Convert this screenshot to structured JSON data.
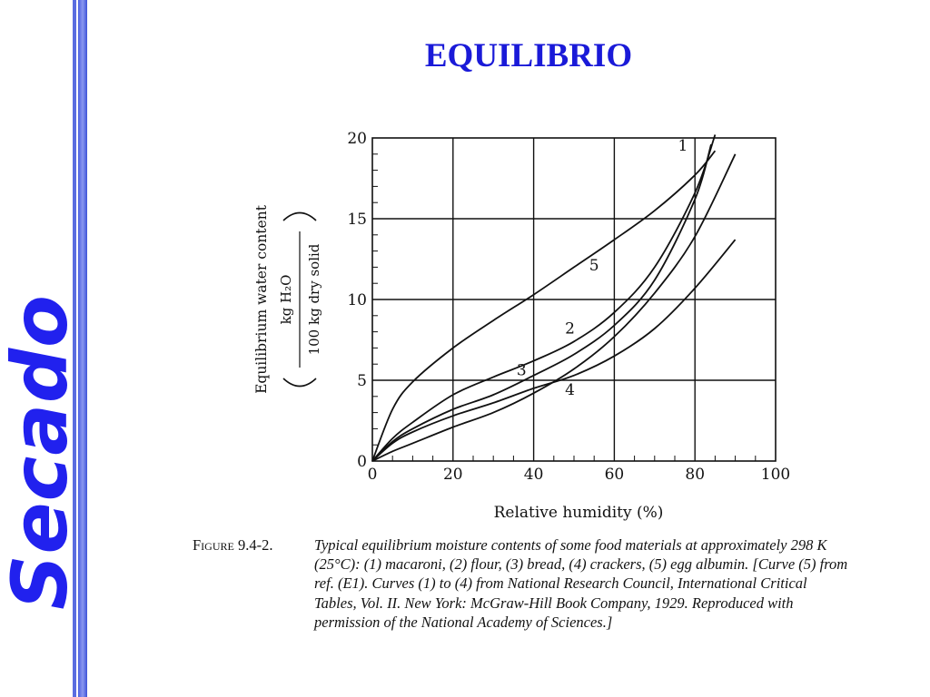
{
  "sidebar": {
    "label": "Secado"
  },
  "slide": {
    "title": "EQUILIBRIO"
  },
  "chart_data": {
    "type": "line",
    "title": "",
    "xlabel": "Relative humidity (%)",
    "ylabel_main": "Equilibrium water content",
    "ylabel_numerator": "kg H₂O",
    "ylabel_denominator": "100 kg dry solid",
    "xlim": [
      0,
      100
    ],
    "ylim": [
      0,
      20
    ],
    "xticks": [
      "0",
      "20",
      "40",
      "60",
      "80",
      "100"
    ],
    "yticks": [
      "0",
      "5",
      "10",
      "15",
      "20"
    ],
    "grid": true,
    "series": [
      {
        "name": "1",
        "x": [
          0,
          5,
          10,
          20,
          30,
          40,
          50,
          60,
          70,
          80,
          85
        ],
        "y": [
          0,
          1.4,
          2.4,
          4.1,
          5.2,
          6.2,
          7.4,
          9.2,
          12.0,
          16.6,
          20.2
        ]
      },
      {
        "name": "2",
        "x": [
          0,
          5,
          10,
          20,
          30,
          40,
          50,
          60,
          70,
          80,
          84
        ],
        "y": [
          0,
          1.2,
          2.0,
          3.2,
          4.1,
          5.3,
          6.6,
          8.4,
          11.2,
          16.2,
          19.6
        ]
      },
      {
        "name": "3",
        "x": [
          0,
          5,
          10,
          20,
          30,
          40,
          50,
          60,
          70,
          80,
          90
        ],
        "y": [
          0,
          0.6,
          1.1,
          2.1,
          3.0,
          4.2,
          5.7,
          7.7,
          10.4,
          13.9,
          19.0
        ]
      },
      {
        "name": "4",
        "x": [
          0,
          5,
          10,
          20,
          30,
          40,
          50,
          60,
          70,
          80,
          90
        ],
        "y": [
          0,
          1.1,
          1.8,
          2.8,
          3.6,
          4.5,
          5.3,
          6.5,
          8.2,
          10.7,
          13.7
        ]
      },
      {
        "name": "5",
        "x": [
          0,
          5,
          10,
          20,
          30,
          40,
          50,
          60,
          70,
          80,
          85
        ],
        "y": [
          0,
          3.2,
          4.9,
          7.0,
          8.7,
          10.3,
          12.0,
          13.7,
          15.5,
          17.7,
          19.2
        ]
      }
    ],
    "curve_labels": [
      {
        "text": "1",
        "x": 77,
        "y": 19.2
      },
      {
        "text": "2",
        "x": 49,
        "y": 7.9
      },
      {
        "text": "3",
        "x": 37,
        "y": 5.3
      },
      {
        "text": "4",
        "x": 49,
        "y": 4.1
      },
      {
        "text": "5",
        "x": 55,
        "y": 11.8
      }
    ]
  },
  "caption": {
    "label": "Figure 9.4-2.",
    "text": "Typical equilibrium moisture contents of some food materials at approximately 298 K (25°C): (1) macaroni, (2) flour, (3) bread, (4) crackers, (5) egg albumin. [Curve (5) from ref. (E1). Curves (1) to (4) from National Research Council, International Critical Tables, Vol. II. New York: McGraw-Hill Book Company, 1929. Reproduced with permission of the National Academy of Sciences.]"
  }
}
